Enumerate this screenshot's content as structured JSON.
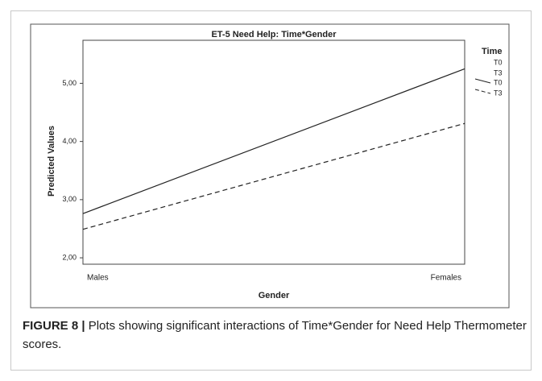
{
  "chart_data": {
    "type": "line",
    "title": "ET-5 Need Help: Time*Gender",
    "x_label": "Gender",
    "y_label": "Predicted Values",
    "categories": [
      "Males",
      "Females"
    ],
    "series": [
      {
        "name": "T0",
        "color": "#222222",
        "dash": "solid",
        "values": [
          2.76,
          5.25
        ]
      },
      {
        "name": "T3",
        "color": "#222222",
        "dash": "dashed",
        "values": [
          2.49,
          4.31
        ]
      }
    ],
    "ylim": [
      1.89,
      5.74
    ],
    "yticks": [
      {
        "value": 2,
        "label": "2,00"
      },
      {
        "value": 3,
        "label": "3,00"
      },
      {
        "value": 4,
        "label": "4,00"
      },
      {
        "value": 5,
        "label": "5,00"
      }
    ],
    "legend_title": "Time",
    "legend_extra": [
      "T0",
      "T3"
    ],
    "legend": "right"
  },
  "caption": {
    "label": "FIGURE 8 |",
    "text": "Plots showing significant interactions of Time*Gender for Need Help Thermometer scores."
  }
}
